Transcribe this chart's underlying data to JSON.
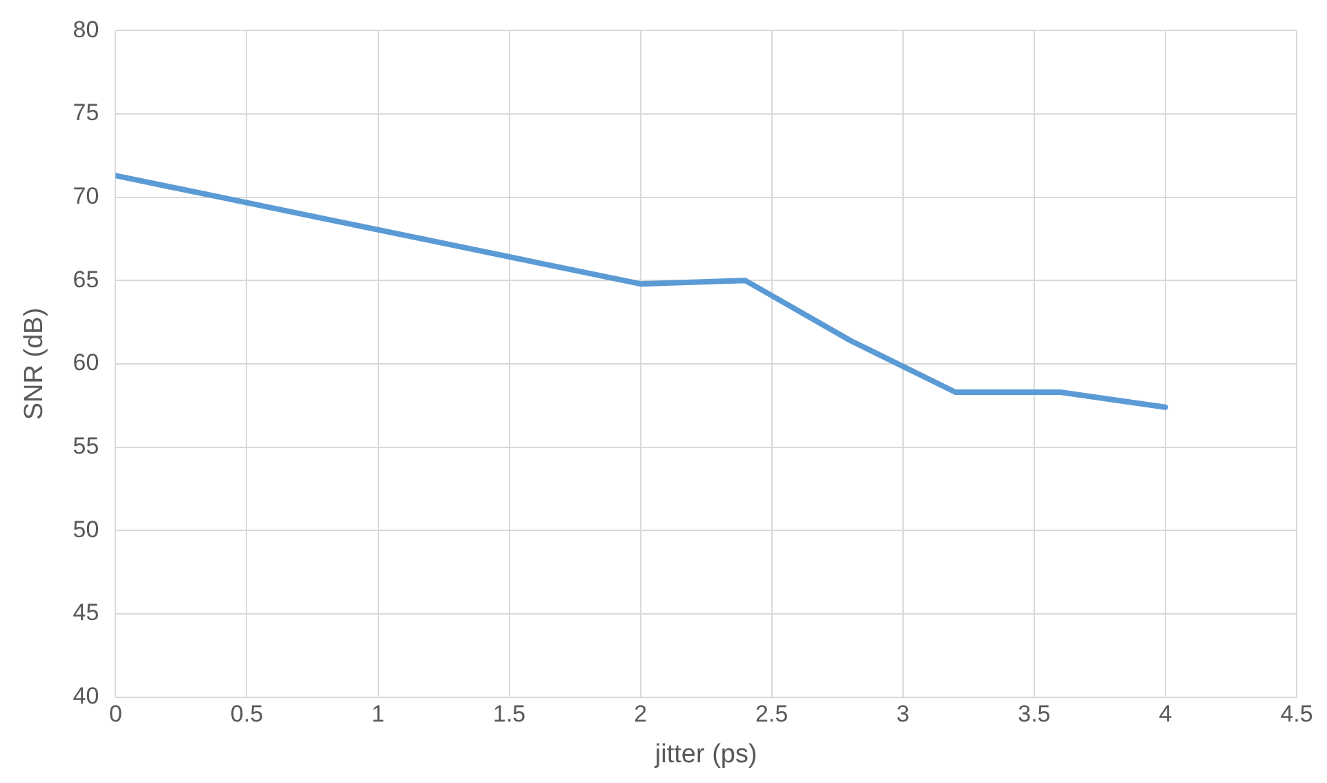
{
  "chart_data": {
    "type": "line",
    "xlabel": "jitter (ps)",
    "ylabel": "SNR (dB)",
    "x": [
      0,
      0.4,
      0.8,
      1.2,
      1.6,
      2,
      2.4,
      2.8,
      3.2,
      3.6,
      4
    ],
    "series": [
      {
        "color": "#5b9bd5",
        "values": [
          71.3,
          70.0,
          68.7,
          67.4,
          66.1,
          64.8,
          65.0,
          61.4,
          58.3,
          58.3,
          57.4
        ]
      }
    ],
    "xlim": [
      0,
      4.5
    ],
    "xticks": [
      0,
      0.5,
      1,
      1.5,
      2,
      2.5,
      3,
      3.5,
      4,
      4.5
    ],
    "ylim": [
      40,
      80
    ],
    "yticks": [
      40,
      45,
      50,
      55,
      60,
      65,
      70,
      75,
      80
    ],
    "grid": true,
    "legend": false,
    "marker": "none",
    "line_style": "solid"
  }
}
